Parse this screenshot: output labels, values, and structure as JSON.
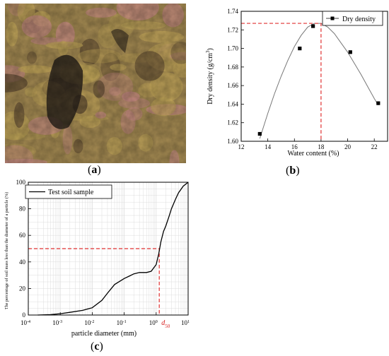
{
  "panels": {
    "a": {
      "label_open": "(",
      "label_letter": "a",
      "label_close": ")"
    },
    "b": {
      "label_open": "(",
      "label_letter": "b",
      "label_close": ")"
    },
    "c": {
      "label_open": "(",
      "label_letter": "c",
      "label_close": ")"
    }
  },
  "photo": {
    "colors": {
      "base": "#a48a52",
      "ochre": "#c4a85a",
      "pink": "#c98b86",
      "shadow": "#2b231c",
      "dark": "#5a4630"
    }
  },
  "chart_data": [
    {
      "type": "scatter",
      "xlabel": "Water content (%)",
      "ylabel_main": "Dry density (g/cm",
      "ylabel_sup": "3",
      "ylabel_end": ")",
      "xlim": [
        12,
        23
      ],
      "ylim": [
        1.6,
        1.74
      ],
      "xticks": [
        "12",
        "14",
        "16",
        "18",
        "20",
        "22"
      ],
      "yticks": [
        "1.60",
        "1.62",
        "1.64",
        "1.66",
        "1.68",
        "1.70",
        "1.72",
        "1.74"
      ],
      "series": [
        {
          "name": "Dry density",
          "marker": "square",
          "x": [
            13.4,
            16.4,
            17.4,
            20.2,
            22.3
          ],
          "y": [
            1.608,
            1.7,
            1.724,
            1.696,
            1.641
          ]
        }
      ],
      "fit_curve": {
        "x": [
          13.4,
          14.0,
          14.5,
          15.0,
          15.5,
          16.0,
          16.5,
          17.0,
          17.5,
          18.0,
          18.5,
          19.0,
          19.5,
          20.0,
          20.5,
          21.0,
          21.5,
          22.0,
          22.3
        ],
        "y": [
          1.603,
          1.63,
          1.651,
          1.67,
          1.687,
          1.702,
          1.714,
          1.723,
          1.727,
          1.727,
          1.723,
          1.716,
          1.706,
          1.696,
          1.684,
          1.672,
          1.659,
          1.646,
          1.639
        ]
      },
      "reference": {
        "x": 18.0,
        "y": 1.727
      },
      "legend_position": "top-right",
      "grid": false,
      "colors": {
        "marker": "#000000",
        "curve": "#777777",
        "reference": "#e03030"
      }
    },
    {
      "type": "line",
      "xlabel": "particle diameter (mm)",
      "ylabel": "The percentage of soil mass less than the diameter of a particle (%)",
      "xscale": "log",
      "xlim": [
        0.0001,
        10
      ],
      "ylim": [
        0,
        100
      ],
      "xticks": [
        {
          "base": "10",
          "exp": "-4"
        },
        {
          "base": "10",
          "exp": "-3"
        },
        {
          "base": "10",
          "exp": "-2"
        },
        {
          "base": "10",
          "exp": "-1"
        },
        {
          "base": "10",
          "exp": "0"
        },
        {
          "base": "10",
          "exp": "1"
        }
      ],
      "yticks": [
        "0",
        "20",
        "40",
        "60",
        "80",
        "100"
      ],
      "series": [
        {
          "name": "Test soil sample",
          "x": [
            0.0002,
            0.0005,
            0.001,
            0.002,
            0.005,
            0.01,
            0.02,
            0.03,
            0.05,
            0.08,
            0.1,
            0.15,
            0.2,
            0.3,
            0.5,
            0.7,
            1.0,
            1.2,
            1.4,
            1.7,
            2.0,
            2.5,
            3.0,
            4.0,
            5.0,
            7.0,
            10.0
          ],
          "y": [
            0.0,
            0.3,
            1.0,
            2.0,
            3.5,
            5.5,
            11.0,
            16.5,
            23.0,
            26.0,
            27.5,
            29.5,
            31.0,
            32.0,
            32.0,
            33.0,
            38.0,
            46.0,
            55.0,
            63.0,
            67.0,
            74.0,
            80.0,
            87.0,
            92.0,
            97.0,
            100.0
          ]
        }
      ],
      "reference": {
        "x": 1.25,
        "y": 50,
        "label_base": "d",
        "label_sub": "50"
      },
      "legend_position": "top-left",
      "grid": true,
      "colors": {
        "line": "#000000",
        "reference": "#e03030",
        "annotation": "#d62020",
        "grid": "#d9d9d9"
      }
    }
  ]
}
